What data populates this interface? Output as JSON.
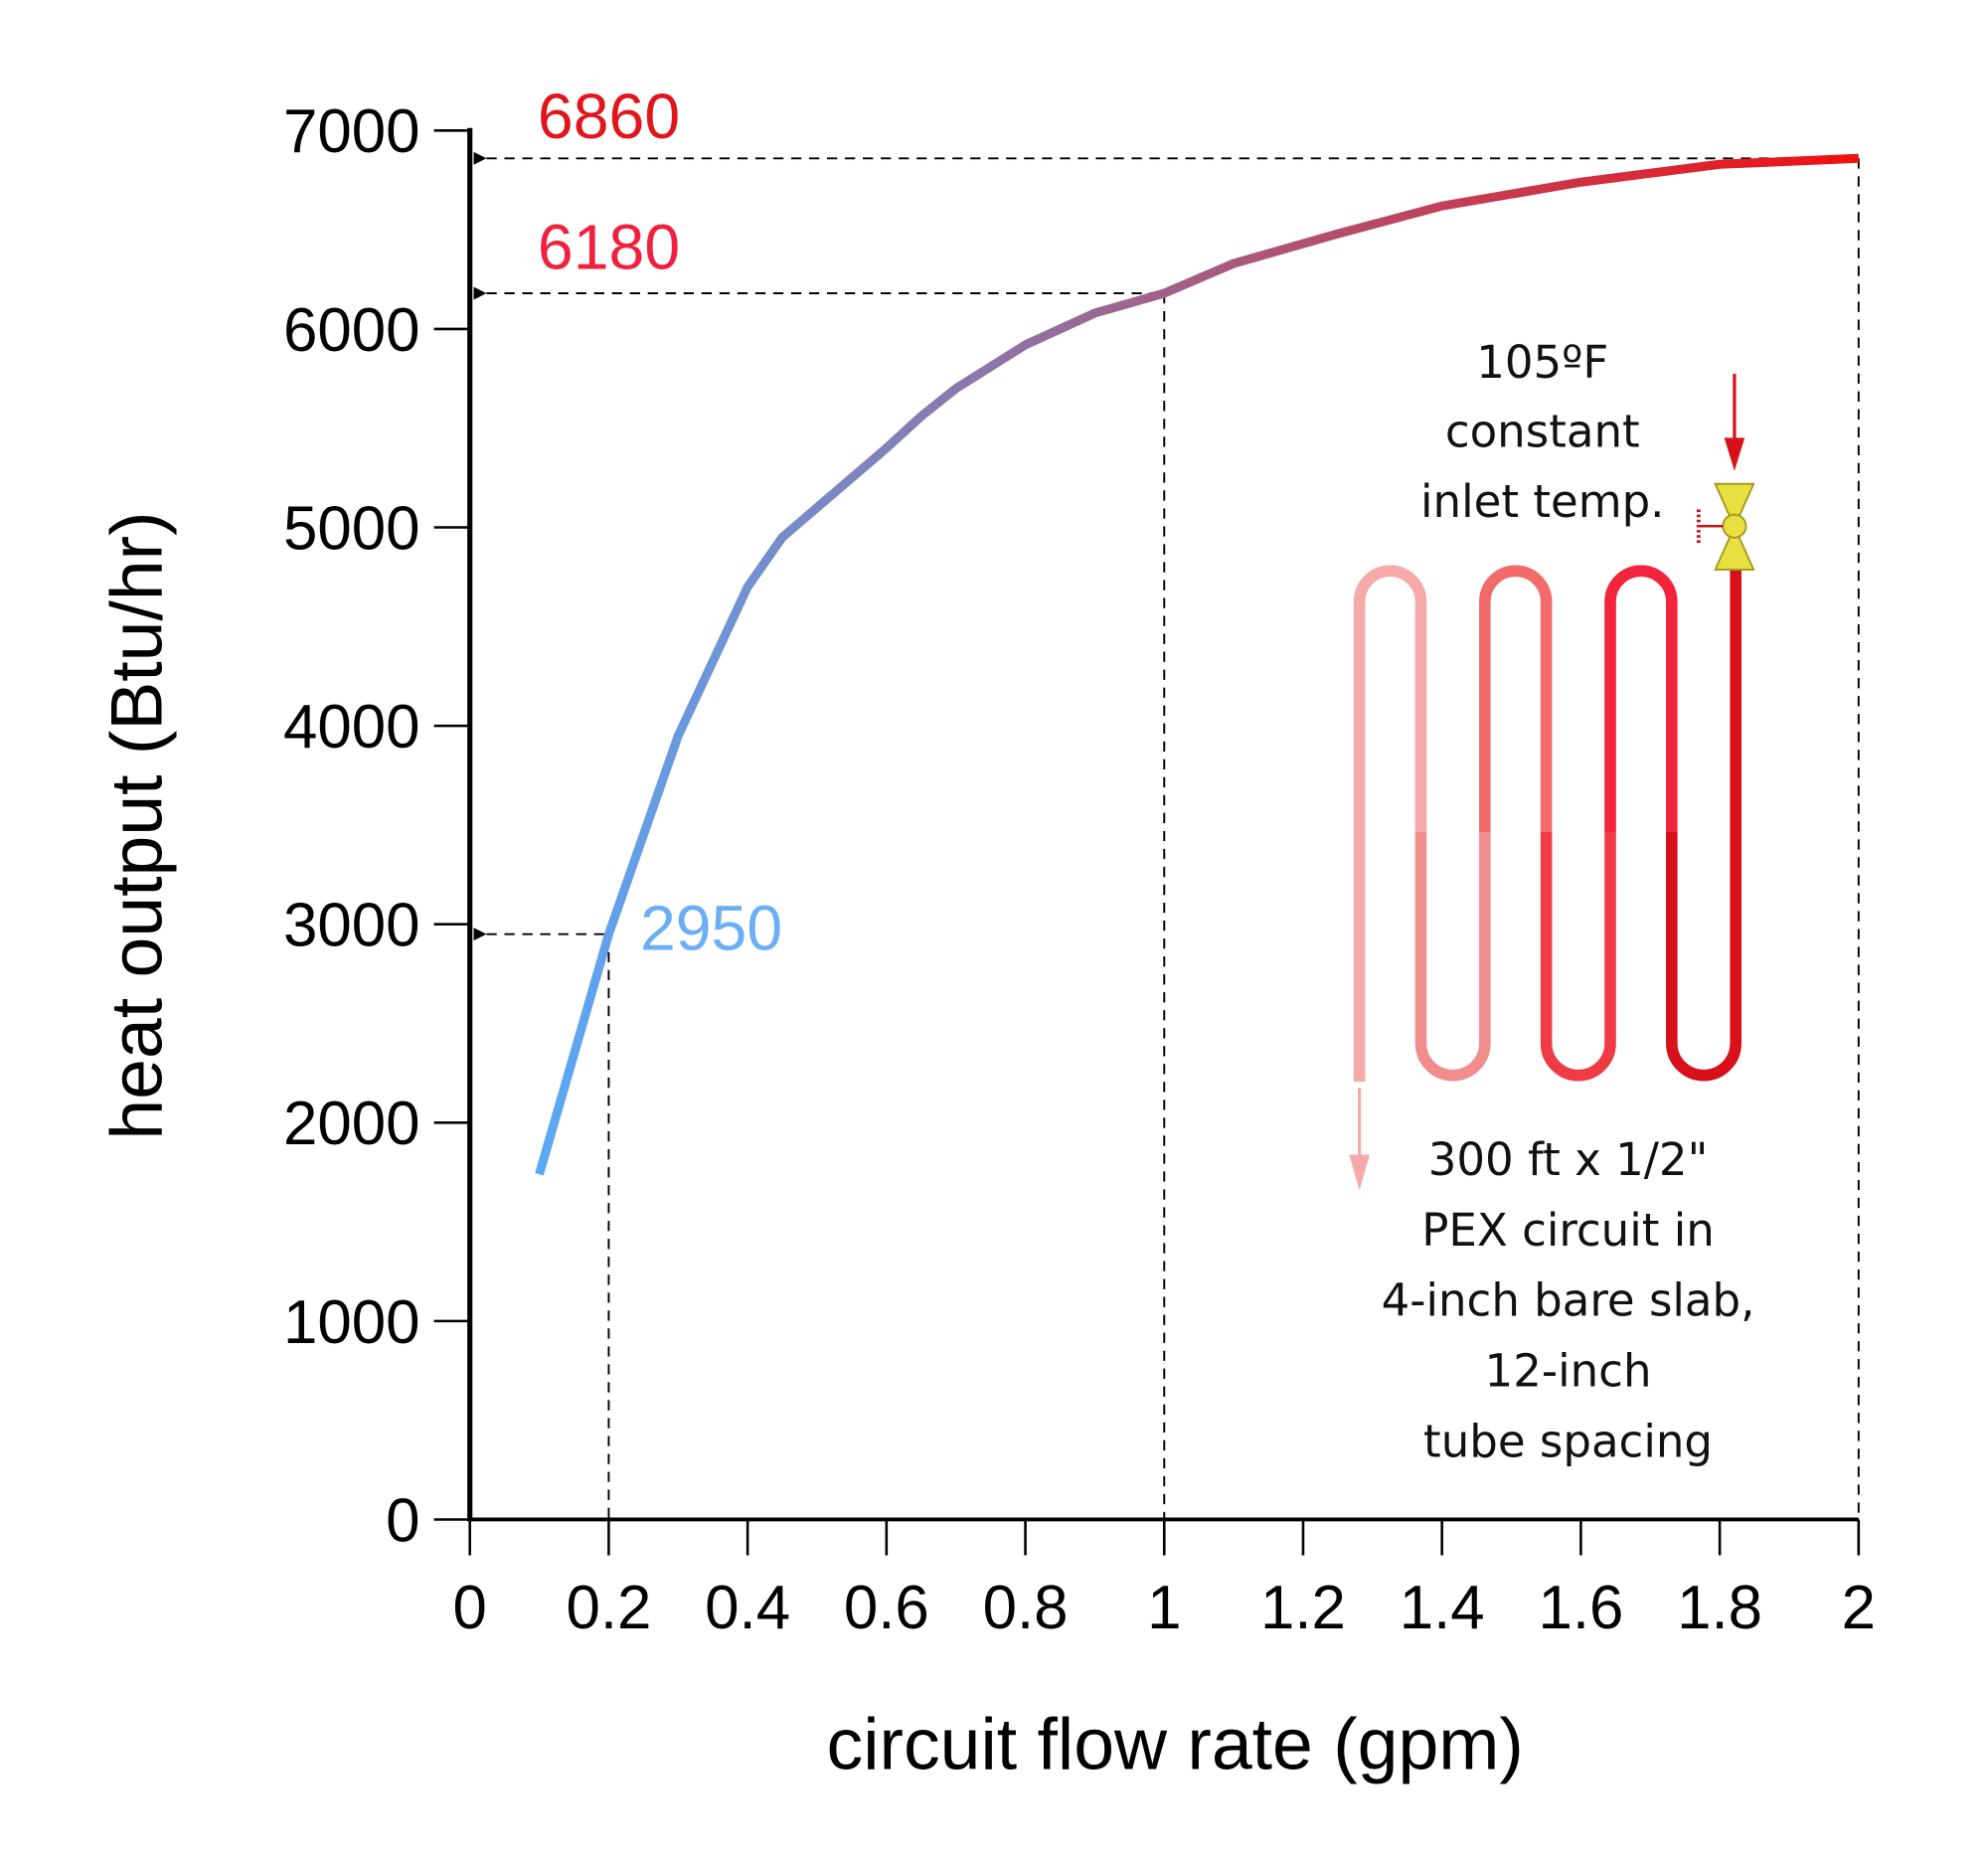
{
  "chart_data": {
    "type": "line",
    "x_label": "circuit flow rate (gpm)",
    "y_label": "heat output (Btu/hr)",
    "series": [
      {
        "x": [
          0.1,
          0.2,
          0.25,
          0.3,
          0.4,
          0.45,
          0.6,
          0.65,
          0.7,
          0.8,
          0.9,
          1,
          1.1,
          1.25,
          1.4,
          1.5,
          1.6,
          1.8,
          2
        ],
        "values": [
          1740,
          2950,
          3450,
          3950,
          4700,
          4950,
          5400,
          5560,
          5700,
          5920,
          6080,
          6180,
          6330,
          6480,
          6620,
          6680,
          6740,
          6830,
          6860
        ],
        "gradient": [
          "#5aa9f5",
          "#f01010"
        ]
      }
    ],
    "xlim": [
      0,
      2
    ],
    "xticks": [
      0,
      0.2,
      0.4,
      0.6,
      0.8,
      1,
      1.2,
      1.4,
      1.6,
      1.8,
      2
    ],
    "ylim": [
      0,
      7000
    ],
    "yticks": [
      0,
      1000,
      2000,
      3000,
      4000,
      5000,
      6000,
      7000
    ],
    "annotations": [
      {
        "x": 2,
        "y": 6860,
        "color": "#e0161b"
      },
      {
        "x": 1,
        "y": 6180,
        "color": "#f0213d"
      },
      {
        "x": 0.2,
        "y": 2950,
        "color": "#6aaef5"
      }
    ],
    "inlet_note": [
      "105ºF",
      "constant",
      "inlet temp."
    ],
    "circuit_note": [
      "300 ft x 1/2\"",
      "PEX circuit in",
      "4-inch bare slab,",
      "12-inch",
      "tube spacing"
    ]
  }
}
